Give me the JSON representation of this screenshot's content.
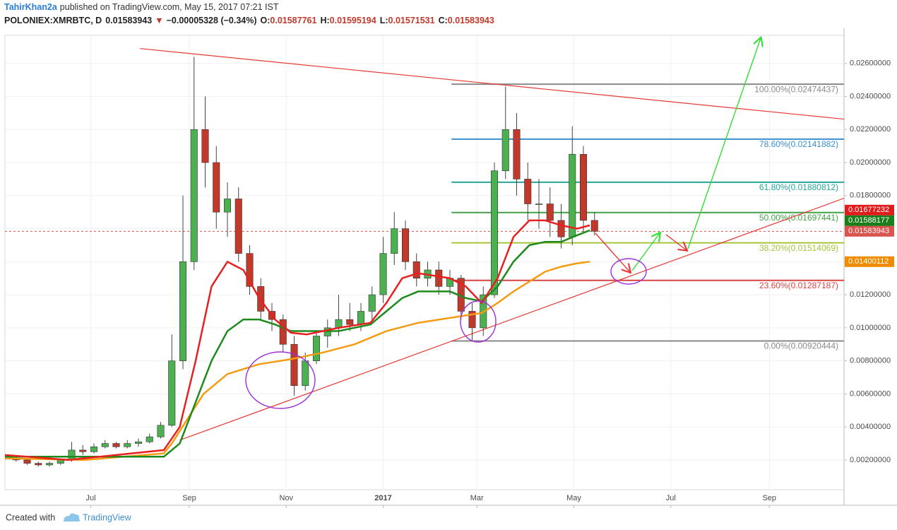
{
  "header": {
    "author": "TahirKhan2a",
    "published": "published on TradingView.com, May 15, 2017 07:21 IST",
    "symbol": "POLONIEX:XMRBTC, D",
    "last": 0.01583943,
    "change": "−0.00005328 (−0.34%)",
    "ohlc": [
      {
        "label": "O:",
        "value": 0.01587761
      },
      {
        "label": "H:",
        "value": 0.01595194
      },
      {
        "label": "L:",
        "value": 0.01571531
      },
      {
        "label": "C:",
        "value": 0.01583943
      }
    ]
  },
  "footer": {
    "created": "Created with",
    "brand": "TradingView"
  },
  "chart_data": {
    "type": "candlestick",
    "up_color": "#4caf50",
    "down_color": "#c0392b",
    "grid": true,
    "xlim": [
      0,
      528
    ],
    "ylim": [
      0.0002,
      0.0277
    ],
    "xticks": [
      {
        "value": 54,
        "label": "Jul"
      },
      {
        "value": 116,
        "label": "Sep"
      },
      {
        "value": 177,
        "label": "Nov"
      },
      {
        "value": 238,
        "label": "2017"
      },
      {
        "value": 297,
        "label": "Mar"
      },
      {
        "value": 358,
        "label": "May"
      },
      {
        "value": 419,
        "label": "Jul"
      },
      {
        "value": 481,
        "label": "Sep"
      }
    ],
    "yticks": [
      {
        "value": 0.002,
        "label": "0.00200000"
      },
      {
        "value": 0.004,
        "label": "0.00400000"
      },
      {
        "value": 0.006,
        "label": "0.00600000"
      },
      {
        "value": 0.008,
        "label": "0.00800000"
      },
      {
        "value": 0.01,
        "label": "0.01000000"
      },
      {
        "value": 0.012,
        "label": "0.01200000"
      },
      {
        "value": 0.014,
        "label": "0.01400000"
      },
      {
        "value": 0.016,
        "label": "0.01600000"
      },
      {
        "value": 0.018,
        "label": "0.01800000"
      },
      {
        "value": 0.02,
        "label": "0.02000000"
      },
      {
        "value": 0.022,
        "label": "0.02200000"
      },
      {
        "value": 0.024,
        "label": "0.02400000"
      },
      {
        "value": 0.026,
        "label": "0.02600000"
      }
    ],
    "x": [
      0,
      7,
      14,
      21,
      28,
      35,
      42,
      49,
      56,
      63,
      70,
      77,
      84,
      91,
      98,
      105,
      112,
      119,
      126,
      133,
      140,
      147,
      154,
      161,
      168,
      175,
      182,
      189,
      196,
      203,
      210,
      217,
      224,
      231,
      238,
      245,
      252,
      259,
      266,
      273,
      280,
      287,
      294,
      301,
      308,
      315,
      322,
      329,
      336,
      343,
      350,
      357,
      364,
      371
    ],
    "open": [
      0.0022,
      0.0021,
      0.002,
      0.0018,
      0.0017,
      0.0018,
      0.002,
      0.0026,
      0.0025,
      0.0028,
      0.003,
      0.0028,
      0.003,
      0.0031,
      0.0034,
      0.0041,
      0.008,
      0.014,
      0.022,
      0.02,
      0.017,
      0.0178,
      0.0145,
      0.0125,
      0.011,
      0.0105,
      0.009,
      0.0065,
      0.008,
      0.0095,
      0.01,
      0.0105,
      0.0102,
      0.011,
      0.012,
      0.0145,
      0.016,
      0.014,
      0.013,
      0.0135,
      0.0125,
      0.013,
      0.011,
      0.01,
      0.012,
      0.0195,
      0.022,
      0.019,
      0.0175,
      0.0175,
      0.0165,
      0.0155,
      0.0205,
      0.0165
    ],
    "high": [
      0.0023,
      0.0022,
      0.0021,
      0.0019,
      0.0019,
      0.0021,
      0.0031,
      0.0029,
      0.003,
      0.0032,
      0.0031,
      0.0032,
      0.0033,
      0.0036,
      0.0043,
      0.0096,
      0.018,
      0.0264,
      0.024,
      0.021,
      0.0188,
      0.0185,
      0.015,
      0.013,
      0.0115,
      0.0108,
      0.0095,
      0.0085,
      0.0098,
      0.0105,
      0.012,
      0.0115,
      0.0115,
      0.0125,
      0.0155,
      0.017,
      0.0165,
      0.0145,
      0.014,
      0.014,
      0.0135,
      0.0132,
      0.0115,
      0.0125,
      0.02,
      0.0246,
      0.023,
      0.02,
      0.019,
      0.0185,
      0.0175,
      0.0222,
      0.021,
      0.017
    ],
    "low": [
      0.002,
      0.0019,
      0.0017,
      0.0016,
      0.0016,
      0.0017,
      0.0019,
      0.0023,
      0.0024,
      0.0027,
      0.0027,
      0.0027,
      0.0028,
      0.003,
      0.0033,
      0.004,
      0.0075,
      0.0135,
      0.0185,
      0.016,
      0.0155,
      0.014,
      0.012,
      0.0105,
      0.0098,
      0.0085,
      0.0059,
      0.0062,
      0.0078,
      0.0088,
      0.0095,
      0.0098,
      0.0098,
      0.0105,
      0.0115,
      0.0138,
      0.0135,
      0.0125,
      0.0125,
      0.012,
      0.012,
      0.0105,
      0.0092,
      0.0095,
      0.0118,
      0.019,
      0.018,
      0.0165,
      0.016,
      0.0155,
      0.0148,
      0.015,
      0.0158,
      0.0156
    ],
    "close": [
      0.0021,
      0.002,
      0.0018,
      0.0017,
      0.0018,
      0.002,
      0.0026,
      0.0025,
      0.0028,
      0.003,
      0.0028,
      0.003,
      0.0031,
      0.0034,
      0.0041,
      0.008,
      0.014,
      0.022,
      0.02,
      0.017,
      0.0178,
      0.0145,
      0.0125,
      0.011,
      0.0105,
      0.009,
      0.0065,
      0.008,
      0.0095,
      0.01,
      0.0105,
      0.0102,
      0.011,
      0.012,
      0.0145,
      0.016,
      0.014,
      0.013,
      0.0135,
      0.0125,
      0.013,
      0.011,
      0.01,
      0.012,
      0.0195,
      0.022,
      0.019,
      0.0175,
      0.0175,
      0.0165,
      0.0155,
      0.0205,
      0.0165,
      0.01583943
    ],
    "overlays": [
      {
        "color": "#f39c12",
        "x": [
          0,
          50,
          100,
          105,
          115,
          125,
          140,
          160,
          180,
          200,
          220,
          240,
          260,
          280,
          300,
          310,
          320,
          330,
          340,
          350,
          360,
          368
        ],
        "values": [
          0.0021,
          0.002,
          0.0024,
          0.003,
          0.0045,
          0.006,
          0.0072,
          0.0078,
          0.0081,
          0.0085,
          0.009,
          0.0098,
          0.0103,
          0.0106,
          0.0109,
          0.0115,
          0.0122,
          0.0128,
          0.0134,
          0.0137,
          0.0139,
          0.014
        ]
      },
      {
        "color": "#1e8a1e",
        "x": [
          0,
          100,
          110,
          120,
          130,
          140,
          150,
          160,
          170,
          180,
          190,
          210,
          230,
          240,
          250,
          260,
          270,
          280,
          290,
          300,
          310,
          320,
          330,
          340,
          350,
          360,
          368
        ],
        "values": [
          0.0022,
          0.0022,
          0.003,
          0.0055,
          0.008,
          0.0098,
          0.0105,
          0.0105,
          0.0102,
          0.0098,
          0.0098,
          0.0098,
          0.0102,
          0.011,
          0.0118,
          0.0122,
          0.0122,
          0.0122,
          0.0118,
          0.0116,
          0.0125,
          0.014,
          0.015,
          0.0152,
          0.0152,
          0.0156,
          0.0159
        ]
      },
      {
        "color": "#e82020",
        "x": [
          0,
          40,
          100,
          110,
          120,
          130,
          140,
          150,
          160,
          170,
          180,
          190,
          210,
          230,
          240,
          250,
          260,
          280,
          290,
          300,
          310,
          320,
          330,
          340,
          350,
          360,
          368
        ],
        "values": [
          0.0023,
          0.002,
          0.0026,
          0.004,
          0.008,
          0.0125,
          0.014,
          0.0135,
          0.0118,
          0.0105,
          0.0097,
          0.0096,
          0.01,
          0.0103,
          0.0115,
          0.013,
          0.0133,
          0.013,
          0.0125,
          0.0115,
          0.013,
          0.0155,
          0.0165,
          0.0165,
          0.0162,
          0.016,
          0.0162
        ]
      }
    ],
    "trend_lines": [
      {
        "color": "#e53935",
        "x": [
          85,
          528
        ],
        "values": [
          0.0269,
          0.02263
        ]
      },
      {
        "color": "#e53935",
        "x": [
          110,
          528
        ],
        "values": [
          0.0032,
          0.01784
        ]
      }
    ],
    "fib_start": 281,
    "fib_levels": [
      {
        "label": "100.00%(0.02474437)",
        "value": 0.02474437,
        "color": "#8a8a8a"
      },
      {
        "label": "78.60%(0.02141882)",
        "value": 0.02141882,
        "color": "#3a8fd0"
      },
      {
        "label": "61.80%(0.01880812)",
        "value": 0.01880812,
        "color": "#26a69a"
      },
      {
        "label": "50.00%(0.01697441)",
        "value": 0.01697441,
        "color": "#43a047"
      },
      {
        "label": "38.20%(0.01514069)",
        "value": 0.01514069,
        "color": "#a5c63b"
      },
      {
        "label": "23.60%(0.01287187)",
        "value": 0.01287187,
        "color": "#d84343"
      },
      {
        "label": "0.00%(0.00920444)",
        "value": 0.00920444,
        "color": "#8a8a8a"
      }
    ],
    "price_markers": [
      {
        "value": 0.01677232,
        "label": "0.01677232",
        "color": "#e01b1b"
      },
      {
        "value": 0.01588177,
        "label": "0.01588177",
        "color": "#1a7f1a"
      },
      {
        "value": 0.01583943,
        "label": "0.01583943",
        "color": "#d9534f",
        "dashed": true
      },
      {
        "value": 0.01400112,
        "label": "0.01400112",
        "color": "#f08c00"
      }
    ]
  }
}
